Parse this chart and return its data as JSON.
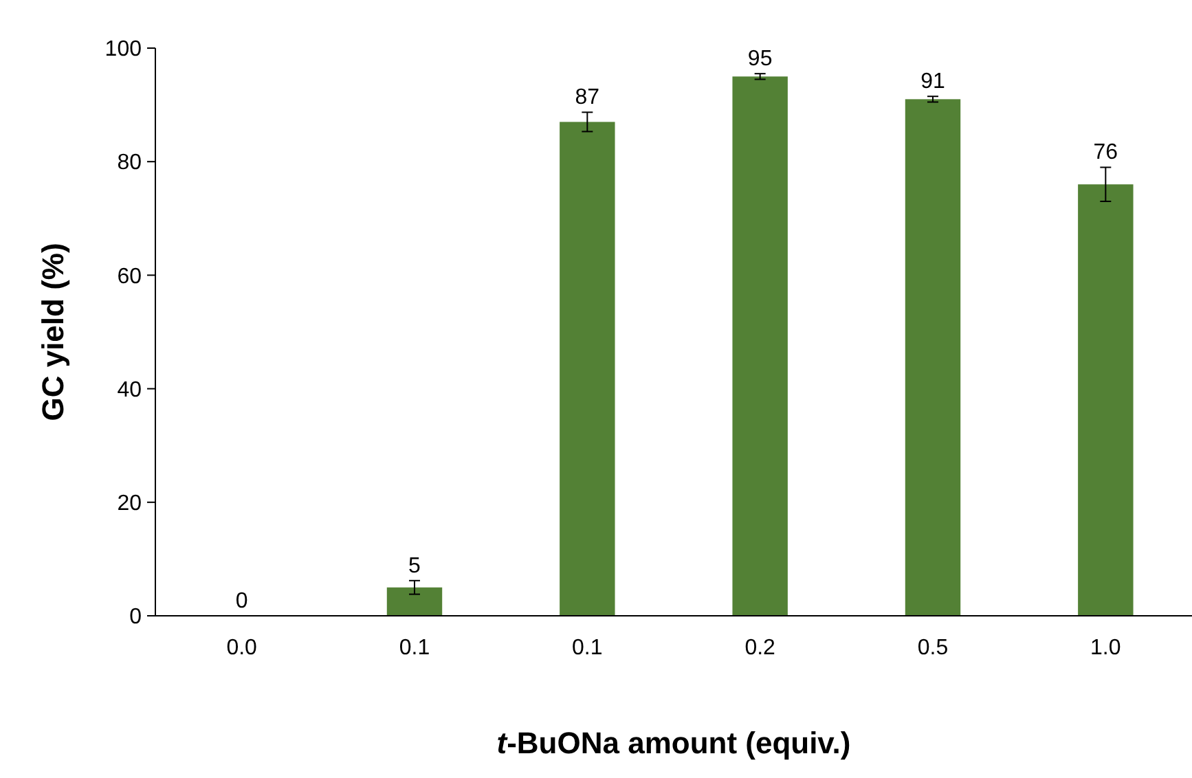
{
  "chart_data": {
    "type": "bar",
    "xlabel": "t-BuONa amount (equiv.)",
    "ylabel": "GC yield (%)",
    "categories": [
      "0.0",
      "0.1",
      "0.1",
      "0.2",
      "0.5",
      "1.0"
    ],
    "values": [
      0,
      5,
      87,
      95,
      91,
      76
    ],
    "errors": [
      null,
      1.2,
      1.7,
      0.5,
      0.5,
      3
    ],
    "color": "#538135",
    "ylim": [
      0,
      100
    ],
    "yticks": [
      0,
      20,
      40,
      60,
      80,
      100
    ],
    "grid": false,
    "data_labels": true
  }
}
